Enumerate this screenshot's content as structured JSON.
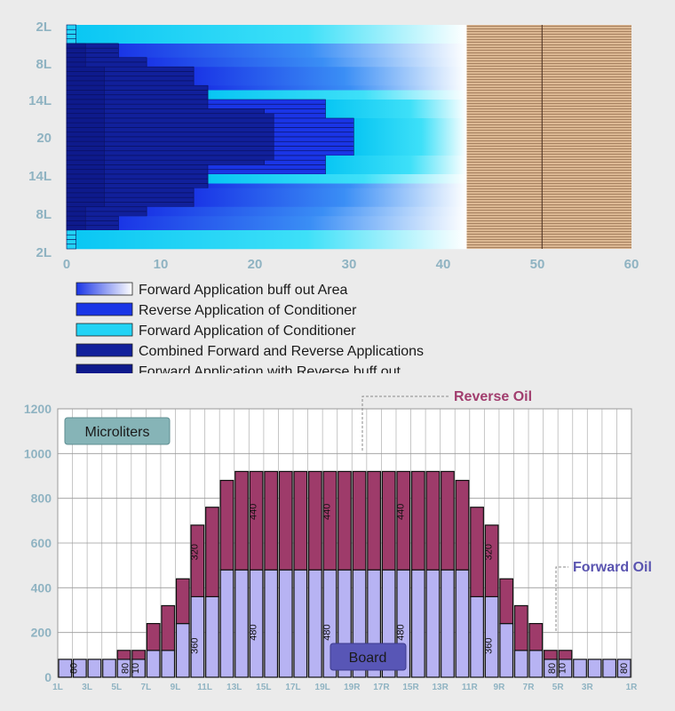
{
  "chart_data": [
    {
      "type": "heatmap",
      "y_tick_labels": [
        "2L",
        "8L",
        "14L",
        "20",
        "14L",
        "8L",
        "2L"
      ],
      "x_ticks": [
        0,
        10,
        20,
        30,
        40,
        50,
        60
      ],
      "xlim": [
        0,
        60
      ],
      "rows": 48,
      "bands": [
        {
          "name": "Forward Application with Reverse buff out",
          "upper_end": [
            1,
            1,
            1,
            1,
            2,
            2,
            2,
            2,
            2,
            4,
            4,
            4,
            4,
            4,
            4,
            4,
            4,
            4,
            4,
            4,
            4,
            4,
            4,
            4
          ],
          "color": "#0e1a8c"
        },
        {
          "name": "Combined Forward and Reverse Applications",
          "upper_end": [
            0,
            0,
            0,
            0,
            5.5,
            5.5,
            5.5,
            8.5,
            8.5,
            13.5,
            13.5,
            13.5,
            13.5,
            15,
            15,
            15,
            15,
            15,
            21,
            22,
            22,
            22,
            22,
            22
          ],
          "color": "#11209b"
        },
        {
          "name": "Reverse Application of Conditioner",
          "upper_end": [
            0,
            0,
            0,
            0,
            5.5,
            5.5,
            5.5,
            8.5,
            8.5,
            13.5,
            13.5,
            13.5,
            13.5,
            15,
            15,
            15,
            27.5,
            27.5,
            27.5,
            27.5,
            30.5,
            30.5,
            30.5,
            30.5
          ],
          "color": "#1a35e6"
        },
        {
          "name": "Forward Application buff out Area",
          "end": 42.5,
          "color": "#ffffff"
        },
        {
          "name": "Board",
          "start": 42.5,
          "end": 60,
          "color": "#d8b48c",
          "divider_at": 50.5
        }
      ],
      "legend": [
        {
          "label": "Forward Application buff out Area",
          "color": "#2a3ee8",
          "gradient": true
        },
        {
          "label": "Reverse Application of Conditioner",
          "color": "#1a35e6"
        },
        {
          "label": "Forward Application of Conditioner",
          "color": "#22d3f5"
        },
        {
          "label": "Combined Forward and Reverse Applications",
          "color": "#11209b"
        },
        {
          "label": "Forward Application with Reverse buff out",
          "color": "#0e1a8c"
        }
      ]
    },
    {
      "type": "bar",
      "stacked": true,
      "categories": [
        "1L",
        "2L",
        "3L",
        "4L",
        "5L",
        "6L",
        "7L",
        "8L",
        "9L",
        "10L",
        "11L",
        "12L",
        "13L",
        "14L",
        "15L",
        "16L",
        "17L",
        "18L",
        "19L",
        "20",
        "19R",
        "18R",
        "17R",
        "16R",
        "15R",
        "14R",
        "13R",
        "12R",
        "11R",
        "10R",
        "9R",
        "8R",
        "7R",
        "6R",
        "5R",
        "4R",
        "3R",
        "2R",
        "1R"
      ],
      "x_tick_labels": [
        "1L",
        "3L",
        "5L",
        "7L",
        "9L",
        "11L",
        "13L",
        "15L",
        "17L",
        "19L",
        "19R",
        "17R",
        "15R",
        "13R",
        "11R",
        "9R",
        "7R",
        "5R",
        "3R",
        "1R"
      ],
      "series": [
        {
          "name": "Forward Oil",
          "color": "#b7b3f3",
          "values": [
            80,
            80,
            80,
            80,
            80,
            80,
            120,
            120,
            240,
            360,
            360,
            480,
            480,
            480,
            480,
            480,
            480,
            480,
            480,
            480,
            480,
            480,
            480,
            480,
            480,
            480,
            480,
            480,
            360,
            360,
            240,
            120,
            120,
            80,
            80,
            80,
            80,
            80,
            80
          ]
        },
        {
          "name": "Reverse Oil",
          "color": "#9e3b6a",
          "values": [
            0,
            0,
            0,
            0,
            40,
            40,
            120,
            200,
            200,
            320,
            400,
            400,
            440,
            440,
            440,
            440,
            440,
            440,
            440,
            440,
            440,
            440,
            440,
            440,
            440,
            440,
            440,
            400,
            400,
            320,
            200,
            200,
            120,
            40,
            40,
            0,
            0,
            0,
            0
          ]
        }
      ],
      "ylim": [
        0,
        1200
      ],
      "y_ticks": [
        0,
        200,
        400,
        600,
        800,
        1000,
        1200
      ],
      "data_labels": [
        {
          "text": "80",
          "bar": 0.8
        },
        {
          "text": "80",
          "bar": 4.3
        },
        {
          "text": "10",
          "bar": 5.0
        },
        {
          "text": "360",
          "bar": 9
        },
        {
          "text": "320",
          "bar": 9
        },
        {
          "text": "480",
          "bar": 13
        },
        {
          "text": "440",
          "bar": 13
        },
        {
          "text": "480",
          "bar": 18
        },
        {
          "text": "440",
          "bar": 18
        },
        {
          "text": "480",
          "bar": 23
        },
        {
          "text": "440",
          "bar": 23
        },
        {
          "text": "360",
          "bar": 29
        },
        {
          "text": "320",
          "bar": 29
        },
        {
          "text": "80",
          "bar": 33.3
        },
        {
          "text": "10",
          "bar": 34.0
        },
        {
          "text": "80",
          "bar": 38.2
        }
      ],
      "annotations": {
        "units_box": "Microliters",
        "board_box": "Board",
        "reverse_oil": "Reverse Oil",
        "forward_oil": "Forward Oil"
      }
    }
  ]
}
